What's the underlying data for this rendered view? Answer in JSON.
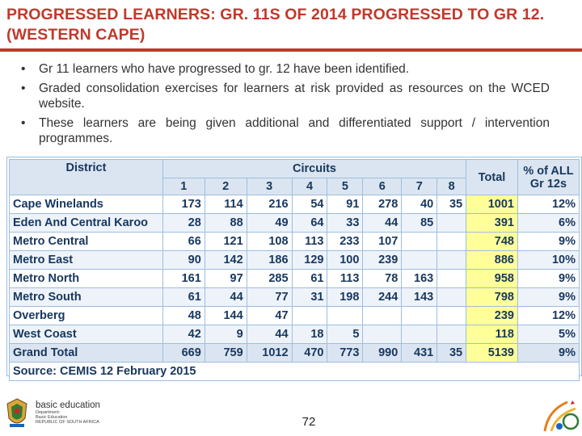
{
  "title": "PROGRESSED LEARNERS: GR. 11S OF 2014 PROGRESSED TO GR 12. (WESTERN CAPE)",
  "bullets": [
    "Gr 11 learners who have progressed to gr. 12 have been identified.",
    "Graded consolidation exercises for learners at risk provided as resources on the WCED website.",
    "These learners are being given additional and differentiated support / intervention programmes."
  ],
  "table": {
    "district_header": "District",
    "circuits_header": "Circuits",
    "total_header": "Total",
    "pct_header_line1": "% of ALL",
    "pct_header_line2": "Gr 12s",
    "circuit_numbers": [
      "1",
      "2",
      "3",
      "4",
      "5",
      "6",
      "7",
      "8"
    ],
    "rows": [
      {
        "district": "Cape Winelands",
        "c": [
          "173",
          "114",
          "216",
          "54",
          "91",
          "278",
          "40",
          "35"
        ],
        "total": "1001",
        "pct": "12%"
      },
      {
        "district": "Eden And Central Karoo",
        "c": [
          "28",
          "88",
          "49",
          "64",
          "33",
          "44",
          "85",
          ""
        ],
        "total": "391",
        "pct": "6%"
      },
      {
        "district": "Metro Central",
        "c": [
          "66",
          "121",
          "108",
          "113",
          "233",
          "107",
          "",
          ""
        ],
        "total": "748",
        "pct": "9%"
      },
      {
        "district": "Metro East",
        "c": [
          "90",
          "142",
          "186",
          "129",
          "100",
          "239",
          "",
          ""
        ],
        "total": "886",
        "pct": "10%"
      },
      {
        "district": "Metro North",
        "c": [
          "161",
          "97",
          "285",
          "61",
          "113",
          "78",
          "163",
          ""
        ],
        "total": "958",
        "pct": "9%"
      },
      {
        "district": "Metro South",
        "c": [
          "61",
          "44",
          "77",
          "31",
          "198",
          "244",
          "143",
          ""
        ],
        "total": "798",
        "pct": "9%"
      },
      {
        "district": "Overberg",
        "c": [
          "48",
          "144",
          "47",
          "",
          "",
          "",
          "",
          ""
        ],
        "total": "239",
        "pct": "12%"
      },
      {
        "district": "West Coast",
        "c": [
          "42",
          "9",
          "44",
          "18",
          "5",
          "",
          "",
          ""
        ],
        "total": "118",
        "pct": "5%"
      }
    ],
    "grand": {
      "district": "Grand Total",
      "c": [
        "669",
        "759",
        "1012",
        "470",
        "773",
        "990",
        "431",
        "35"
      ],
      "total": "5139",
      "pct": "9%"
    },
    "source": "Source: CEMIS 12 February 2015"
  },
  "footer": {
    "logo_main": "basic education",
    "logo_sub1": "Department:",
    "logo_sub2": "Basic Education",
    "logo_sub3": "REPUBLIC OF SOUTH AFRICA",
    "page_number": "72"
  },
  "colors": {
    "title": "#c0392b",
    "table_text": "#17375e",
    "total_highlight": "#ffff99",
    "header_fill": "#dbe5f1"
  }
}
